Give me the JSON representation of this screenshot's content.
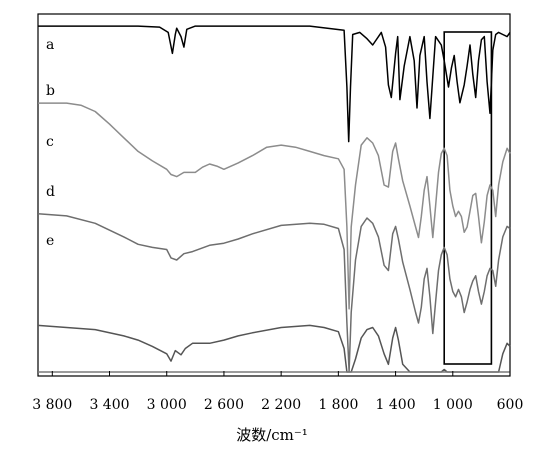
{
  "chart_data": {
    "type": "line",
    "title": "",
    "xlabel": "波数/cm⁻¹",
    "ylabel": "",
    "x_reversed": true,
    "xlim": [
      3900,
      600
    ],
    "y_ticks_shown": false,
    "grid": false,
    "legend": "labels at left of each trace",
    "highlight_box": {
      "x_from": 1060,
      "x_to": 730
    },
    "xticks": [
      {
        "value": 3800,
        "label": "3 800"
      },
      {
        "value": 3400,
        "label": "3 400"
      },
      {
        "value": 3000,
        "label": "3 000"
      },
      {
        "value": 2600,
        "label": "2 600"
      },
      {
        "value": 2200,
        "label": "2 200"
      },
      {
        "value": 1800,
        "label": "1 800"
      },
      {
        "value": 1400,
        "label": "1 400"
      },
      {
        "value": 1000,
        "label": "1 000"
      },
      {
        "value": 600,
        "label": "600"
      }
    ],
    "series": [
      {
        "name": "a",
        "color": "#000000",
        "x": [
          3900,
          3200,
          3050,
          2990,
          2960,
          2940,
          2930,
          2900,
          2880,
          2860,
          2800,
          2000,
          1760,
          1740,
          1728,
          1715,
          1700,
          1650,
          1600,
          1560,
          1500,
          1470,
          1450,
          1430,
          1400,
          1385,
          1370,
          1340,
          1300,
          1270,
          1250,
          1230,
          1200,
          1180,
          1160,
          1140,
          1120,
          1080,
          1060,
          1030,
          1010,
          990,
          970,
          950,
          920,
          900,
          880,
          860,
          840,
          820,
          800,
          780,
          760,
          740,
          720,
          700,
          680,
          650,
          620,
          600
        ],
        "y": [
          2,
          2,
          3,
          8,
          28,
          10,
          4,
          12,
          22,
          5,
          2,
          2,
          6,
          60,
          112,
          60,
          10,
          8,
          14,
          20,
          8,
          22,
          58,
          70,
          28,
          12,
          72,
          40,
          12,
          35,
          80,
          30,
          12,
          55,
          90,
          50,
          12,
          20,
          35,
          60,
          42,
          30,
          55,
          75,
          58,
          40,
          20,
          48,
          70,
          35,
          15,
          12,
          55,
          85,
          25,
          10,
          8,
          10,
          12,
          8
        ]
      },
      {
        "name": "b",
        "color": "#8c8c8c",
        "x": [
          3900,
          3700,
          3600,
          3500,
          3400,
          3300,
          3200,
          3100,
          3000,
          2970,
          2930,
          2880,
          2800,
          2750,
          2700,
          2650,
          2600,
          2500,
          2400,
          2300,
          2200,
          2100,
          2000,
          1900,
          1800,
          1760,
          1740,
          1725,
          1710,
          1680,
          1640,
          1600,
          1560,
          1520,
          1480,
          1450,
          1420,
          1400,
          1380,
          1350,
          1300,
          1260,
          1240,
          1220,
          1200,
          1180,
          1160,
          1140,
          1120,
          1100,
          1080,
          1060,
          1040,
          1020,
          1000,
          980,
          960,
          940,
          920,
          900,
          880,
          860,
          840,
          820,
          800,
          780,
          760,
          740,
          720,
          700,
          680,
          650,
          620,
          600
        ],
        "y": [
          42,
          42,
          44,
          50,
          62,
          75,
          88,
          97,
          105,
          110,
          112,
          108,
          108,
          103,
          100,
          102,
          105,
          99,
          92,
          84,
          82,
          84,
          88,
          92,
          95,
          105,
          160,
          238,
          160,
          120,
          82,
          75,
          80,
          92,
          120,
          122,
          88,
          80,
          95,
          116,
          140,
          160,
          170,
          150,
          125,
          112,
          140,
          170,
          140,
          108,
          90,
          85,
          92,
          125,
          140,
          150,
          145,
          150,
          165,
          160,
          145,
          130,
          128,
          150,
          175,
          155,
          130,
          120,
          125,
          150,
          120,
          98,
          85,
          90
        ]
      },
      {
        "name": "c",
        "color": "#6e6e6e",
        "x": [
          3900,
          3700,
          3500,
          3300,
          3200,
          3100,
          3000,
          2970,
          2930,
          2880,
          2820,
          2700,
          2600,
          2500,
          2400,
          2200,
          2000,
          1900,
          1800,
          1760,
          1740,
          1725,
          1710,
          1680,
          1640,
          1600,
          1560,
          1520,
          1480,
          1450,
          1420,
          1400,
          1380,
          1350,
          1300,
          1260,
          1240,
          1220,
          1200,
          1180,
          1160,
          1140,
          1120,
          1100,
          1080,
          1060,
          1040,
          1020,
          1000,
          980,
          960,
          940,
          920,
          900,
          880,
          860,
          840,
          820,
          800,
          780,
          760,
          740,
          720,
          700,
          680,
          650,
          620,
          600
        ],
        "y": [
          96,
          98,
          105,
          118,
          125,
          128,
          130,
          138,
          140,
          134,
          132,
          126,
          124,
          120,
          115,
          107,
          105,
          106,
          110,
          130,
          200,
          246,
          190,
          140,
          108,
          100,
          105,
          118,
          145,
          150,
          115,
          108,
          120,
          142,
          168,
          190,
          200,
          185,
          158,
          148,
          175,
          210,
          180,
          150,
          135,
          128,
          135,
          158,
          170,
          175,
          168,
          175,
          190,
          180,
          168,
          160,
          155,
          170,
          182,
          170,
          155,
          148,
          150,
          165,
          140,
          118,
          108,
          110
        ]
      },
      {
        "name": "d",
        "color": "#555555",
        "x": [
          3900,
          3700,
          3500,
          3300,
          3200,
          3100,
          3000,
          2970,
          2940,
          2900,
          2870,
          2820,
          2700,
          2600,
          2500,
          2400,
          2200,
          2000,
          1900,
          1800,
          1760,
          1740,
          1725,
          1710,
          1680,
          1640,
          1600,
          1560,
          1520,
          1480,
          1450,
          1420,
          1400,
          1380,
          1350,
          1300,
          1260,
          1240,
          1220,
          1200,
          1180,
          1160,
          1140,
          1120,
          1100,
          1080,
          1060,
          1040,
          1020,
          1000,
          980,
          960,
          940,
          920,
          900,
          880,
          860,
          840,
          820,
          800,
          780,
          760,
          740,
          720,
          700,
          680,
          650,
          620,
          600
        ],
        "y": [
          148,
          150,
          152,
          158,
          162,
          168,
          175,
          182,
          172,
          176,
          170,
          165,
          165,
          162,
          158,
          155,
          150,
          148,
          150,
          154,
          170,
          240,
          300,
          230,
          180,
          160,
          152,
          150,
          158,
          175,
          185,
          160,
          150,
          162,
          185,
          210,
          232,
          240,
          225,
          210,
          205,
          230,
          265,
          240,
          210,
          195,
          190,
          198,
          215,
          225,
          230,
          222,
          228,
          242,
          235,
          225,
          215,
          210,
          220,
          232,
          222,
          208,
          198,
          200,
          212,
          195,
          175,
          165,
          168
        ]
      },
      {
        "name": "e",
        "color": "#7a7a7a",
        "x": [
          3900,
          3700,
          3500,
          3300,
          3200,
          3100,
          3000,
          2970,
          2940,
          2900,
          2870,
          2820,
          2700,
          2600,
          2500,
          2400,
          2200,
          2000,
          1900,
          1800,
          1760,
          1740,
          1725,
          1710,
          1680,
          1640,
          1600,
          1560,
          1520,
          1480,
          1450,
          1420,
          1400,
          1380,
          1350,
          1300,
          1260,
          1240,
          1220,
          1200,
          1180,
          1160,
          1140,
          1120,
          1100,
          1080,
          1060,
          1040,
          1020,
          1000,
          980,
          960,
          940,
          920,
          900,
          880,
          860,
          840,
          820,
          800,
          780,
          760,
          740,
          720,
          700,
          680,
          650,
          620,
          600
        ],
        "y": [
          188,
          190,
          192,
          198,
          202,
          210,
          218,
          225,
          214,
          218,
          212,
          208,
          205,
          203,
          200,
          197,
          193,
          190,
          192,
          196,
          218,
          300,
          330,
          280,
          230,
          205,
          195,
          194,
          200,
          215,
          225,
          205,
          196,
          206,
          228,
          250,
          268,
          275,
          262,
          245,
          238,
          262,
          292,
          265,
          240,
          228,
          222,
          228,
          245,
          255,
          258,
          252,
          258,
          270,
          262,
          255,
          248,
          243,
          250,
          260,
          252,
          240,
          232,
          234,
          244,
          228,
          212,
          204,
          206
        ]
      }
    ]
  }
}
